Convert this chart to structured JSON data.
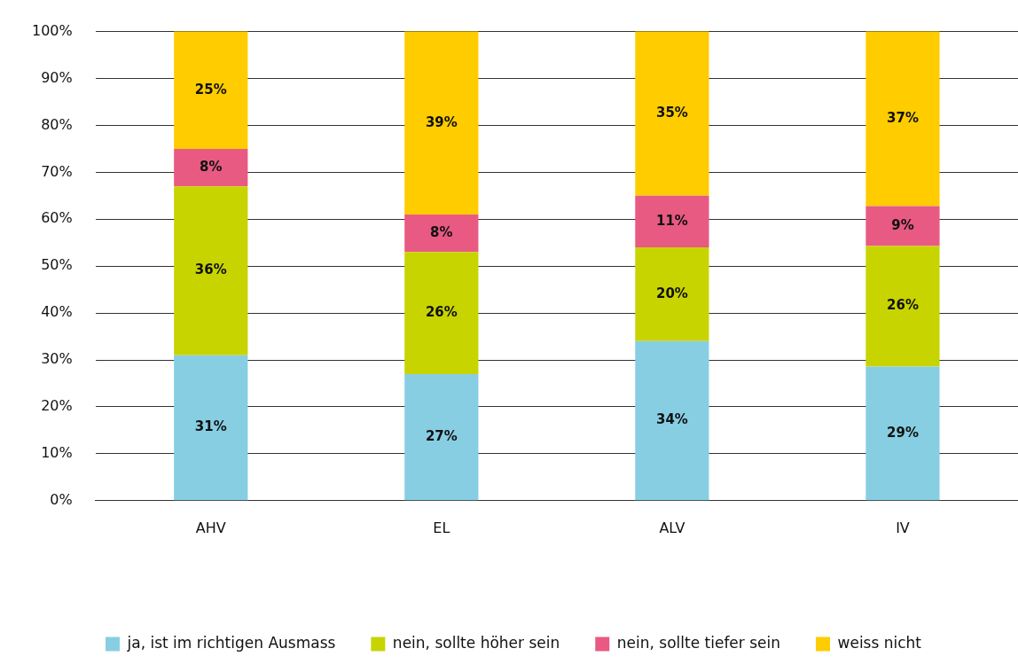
{
  "chart_data": {
    "type": "bar",
    "stacked": true,
    "categories": [
      "AHV",
      "EL",
      "ALV",
      "IV"
    ],
    "series": [
      {
        "name": "ja, ist im richtigen Ausmass",
        "color": "#87cee3",
        "values": [
          31,
          27,
          34,
          28.6
        ],
        "value_labels": [
          "31%",
          "27%",
          "34%",
          "29%"
        ]
      },
      {
        "name": "nein, sollte höher sein",
        "color": "#c8d400",
        "values": [
          36,
          26,
          20,
          25.7
        ],
        "value_labels": [
          "36%",
          "26%",
          "20%",
          "26%"
        ]
      },
      {
        "name": "nein, sollte tiefer sein",
        "color": "#e85a82",
        "values": [
          8,
          8,
          11,
          8.5
        ],
        "value_labels": [
          "8%",
          "8%",
          "11%",
          "9%"
        ]
      },
      {
        "name": "weiss nicht",
        "color": "#ffcc00",
        "values": [
          25,
          39,
          35,
          37.2
        ],
        "value_labels": [
          "25%",
          "39%",
          "35%",
          "37%"
        ]
      }
    ],
    "ylim": [
      0,
      100
    ],
    "yticks": [
      {
        "value": 0,
        "label": "0%"
      },
      {
        "value": 10,
        "label": "10%"
      },
      {
        "value": 20,
        "label": "20%"
      },
      {
        "value": 30,
        "label": "30%"
      },
      {
        "value": 40,
        "label": "40%"
      },
      {
        "value": 50,
        "label": "50%"
      },
      {
        "value": 60,
        "label": "60%"
      },
      {
        "value": 70,
        "label": "70%"
      },
      {
        "value": 80,
        "label": "80%"
      },
      {
        "value": 90,
        "label": "90%"
      },
      {
        "value": 100,
        "label": "100%"
      }
    ],
    "grid": "y",
    "legend": "bottom"
  }
}
